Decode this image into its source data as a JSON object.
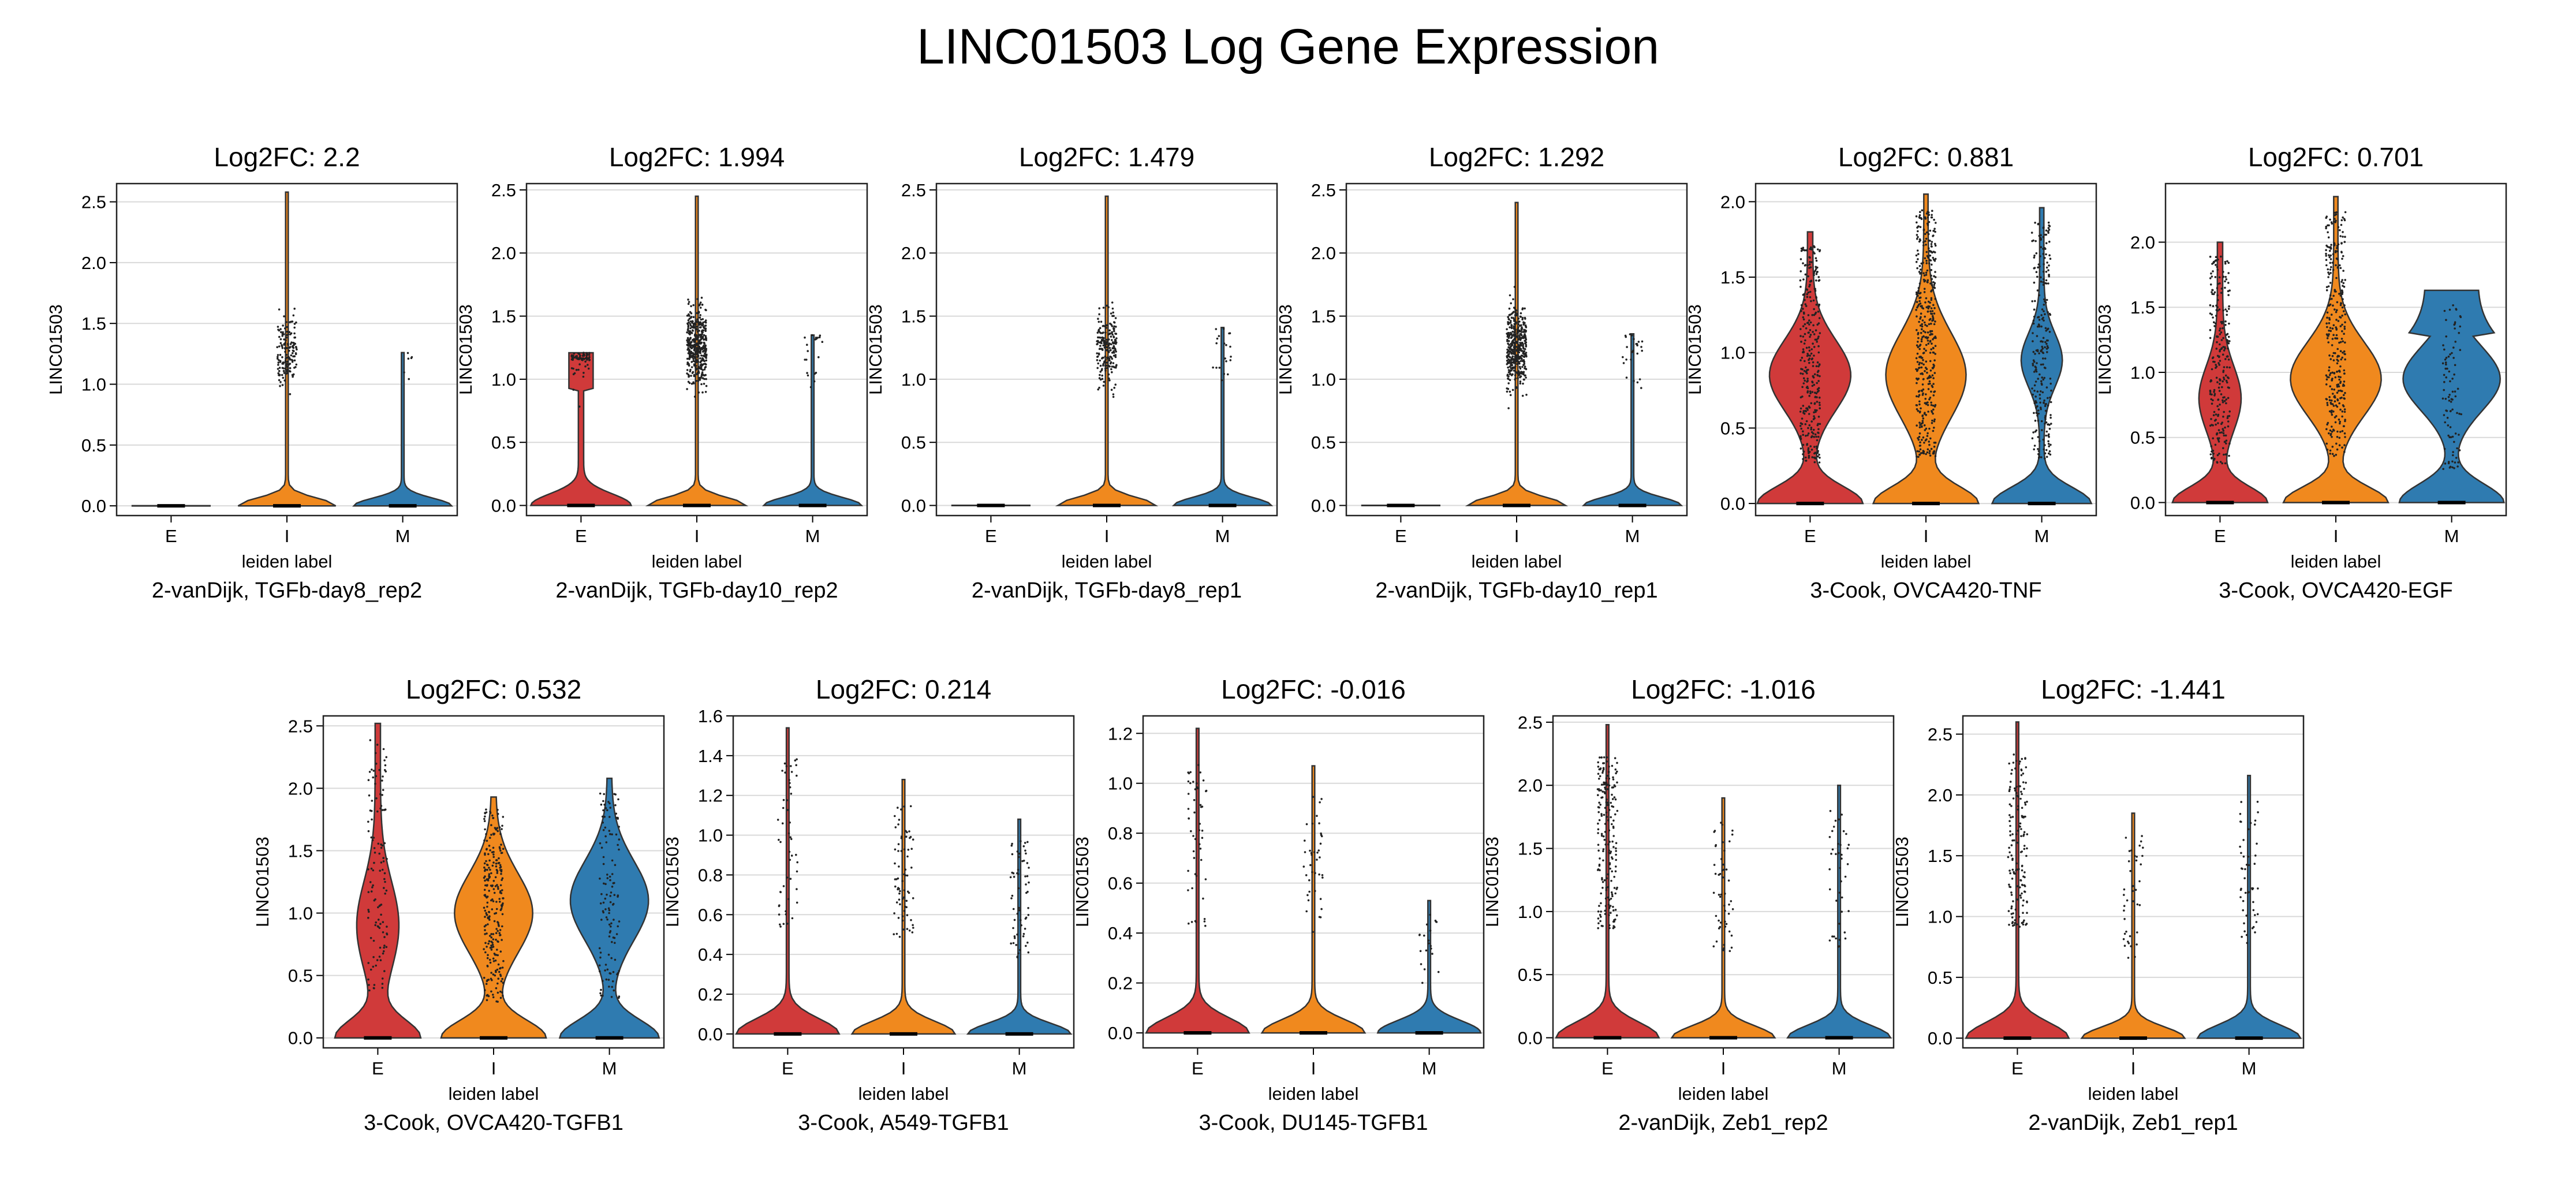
{
  "figure": {
    "title": "LINC01503 Log Gene Expression"
  },
  "colors": {
    "E": "#d03a3a",
    "I": "#f0891e",
    "M": "#2f7bb0"
  },
  "chart_data": [
    {
      "type": "violin",
      "title": "Log2FC: 2.2",
      "subtitle": "2-vanDijk, TGFb-day8_rep2",
      "xlabel": "leiden label",
      "ylabel": "LINC01503",
      "categories": [
        "E",
        "I",
        "M"
      ],
      "ylim": [
        -0.08,
        2.65
      ],
      "yticks": [
        "0.0",
        "0.5",
        "1.0",
        "1.5",
        "2.0",
        "2.5"
      ],
      "ytick_values": [
        0,
        0.5,
        1,
        1.5,
        2,
        2.5
      ],
      "max": [
        0.0,
        2.58,
        1.26
      ],
      "grid": true
    },
    {
      "type": "violin",
      "title": "Log2FC: 1.994",
      "subtitle": "2-vanDijk, TGFb-day10_rep2",
      "xlabel": "leiden label",
      "ylabel": "LINC01503",
      "categories": [
        "E",
        "I",
        "M"
      ],
      "ylim": [
        -0.08,
        2.55
      ],
      "yticks": [
        "0.0",
        "0.5",
        "1.0",
        "1.5",
        "2.0",
        "2.5"
      ],
      "ytick_values": [
        0,
        0.5,
        1,
        1.5,
        2,
        2.5
      ],
      "max": [
        1.21,
        2.45,
        1.35
      ],
      "grid": true
    },
    {
      "type": "violin",
      "title": "Log2FC: 1.479",
      "subtitle": "2-vanDijk, TGFb-day8_rep1",
      "xlabel": "leiden label",
      "ylabel": "LINC01503",
      "categories": [
        "E",
        "I",
        "M"
      ],
      "ylim": [
        -0.08,
        2.55
      ],
      "yticks": [
        "0.0",
        "0.5",
        "1.0",
        "1.5",
        "2.0",
        "2.5"
      ],
      "ytick_values": [
        0,
        0.5,
        1,
        1.5,
        2,
        2.5
      ],
      "max": [
        0.0,
        2.45,
        1.41
      ],
      "grid": true
    },
    {
      "type": "violin",
      "title": "Log2FC: 1.292",
      "subtitle": "2-vanDijk, TGFb-day10_rep1",
      "xlabel": "leiden label",
      "ylabel": "LINC01503",
      "categories": [
        "E",
        "I",
        "M"
      ],
      "ylim": [
        -0.08,
        2.55
      ],
      "yticks": [
        "0.0",
        "0.5",
        "1.0",
        "1.5",
        "2.0",
        "2.5"
      ],
      "ytick_values": [
        0,
        0.5,
        1,
        1.5,
        2,
        2.5
      ],
      "max": [
        0.0,
        2.4,
        1.36
      ],
      "grid": true
    },
    {
      "type": "violin",
      "title": "Log2FC: 0.881",
      "subtitle": "3-Cook, OVCA420-TNF",
      "xlabel": "leiden label",
      "ylabel": "LINC01503",
      "categories": [
        "E",
        "I",
        "M"
      ],
      "ylim": [
        -0.08,
        2.12
      ],
      "yticks": [
        "0.0",
        "0.5",
        "1.0",
        "1.5",
        "2.0"
      ],
      "ytick_values": [
        0,
        0.5,
        1,
        1.5,
        2
      ],
      "max": [
        1.8,
        2.05,
        1.96
      ],
      "grid": true
    },
    {
      "type": "violin",
      "title": "Log2FC: 0.701",
      "subtitle": "3-Cook, OVCA420-EGF",
      "xlabel": "leiden label",
      "ylabel": "LINC01503",
      "categories": [
        "E",
        "I",
        "M"
      ],
      "ylim": [
        -0.1,
        2.45
      ],
      "yticks": [
        "0.0",
        "0.5",
        "1.0",
        "1.5",
        "2.0"
      ],
      "ytick_values": [
        0,
        0.5,
        1,
        1.5,
        2
      ],
      "max": [
        2.0,
        2.35,
        1.63
      ],
      "grid": true
    },
    {
      "type": "violin",
      "title": "Log2FC: 0.532",
      "subtitle": "3-Cook, OVCA420-TGFB1",
      "xlabel": "leiden label",
      "ylabel": "LINC01503",
      "categories": [
        "E",
        "I",
        "M"
      ],
      "ylim": [
        -0.08,
        2.58
      ],
      "yticks": [
        "0.0",
        "0.5",
        "1.0",
        "1.5",
        "2.0",
        "2.5"
      ],
      "ytick_values": [
        0,
        0.5,
        1,
        1.5,
        2,
        2.5
      ],
      "max": [
        2.52,
        1.93,
        2.08
      ],
      "grid": true
    },
    {
      "type": "violin",
      "title": "Log2FC: 0.214",
      "subtitle": "3-Cook, A549-TGFB1",
      "xlabel": "leiden label",
      "ylabel": "LINC01503",
      "categories": [
        "E",
        "I",
        "M"
      ],
      "ylim": [
        -0.07,
        1.6
      ],
      "yticks": [
        "0.0",
        "0.2",
        "0.4",
        "0.6",
        "0.8",
        "1.0",
        "1.2",
        "1.4",
        "1.6"
      ],
      "ytick_values": [
        0,
        0.2,
        0.4,
        0.6,
        0.8,
        1,
        1.2,
        1.4,
        1.6
      ],
      "max": [
        1.54,
        1.28,
        1.08
      ],
      "grid": true
    },
    {
      "type": "violin",
      "title": "Log2FC: -0.016",
      "subtitle": "3-Cook, DU145-TGFB1",
      "xlabel": "leiden label",
      "ylabel": "LINC01503",
      "categories": [
        "E",
        "I",
        "M"
      ],
      "ylim": [
        -0.06,
        1.27
      ],
      "yticks": [
        "0.0",
        "0.2",
        "0.4",
        "0.6",
        "0.8",
        "1.0",
        "1.2"
      ],
      "ytick_values": [
        0,
        0.2,
        0.4,
        0.6,
        0.8,
        1,
        1.2
      ],
      "max": [
        1.22,
        1.07,
        0.53
      ],
      "grid": true
    },
    {
      "type": "violin",
      "title": "Log2FC: -1.016",
      "subtitle": "2-vanDijk, Zeb1_rep2",
      "xlabel": "leiden label",
      "ylabel": "LINC01503",
      "categories": [
        "E",
        "I",
        "M"
      ],
      "ylim": [
        -0.08,
        2.55
      ],
      "yticks": [
        "0.0",
        "0.5",
        "1.0",
        "1.5",
        "2.0",
        "2.5"
      ],
      "ytick_values": [
        0,
        0.5,
        1,
        1.5,
        2,
        2.5
      ],
      "max": [
        2.48,
        1.9,
        2.0
      ],
      "grid": true
    },
    {
      "type": "violin",
      "title": "Log2FC: -1.441",
      "subtitle": "2-vanDijk, Zeb1_rep1",
      "xlabel": "leiden label",
      "ylabel": "LINC01503",
      "categories": [
        "E",
        "I",
        "M"
      ],
      "ylim": [
        -0.08,
        2.65
      ],
      "yticks": [
        "0.0",
        "0.5",
        "1.0",
        "1.5",
        "2.0",
        "2.5"
      ],
      "ytick_values": [
        0,
        0.5,
        1,
        1.5,
        2,
        2.5
      ],
      "max": [
        2.6,
        1.85,
        2.16
      ],
      "grid": true
    }
  ]
}
